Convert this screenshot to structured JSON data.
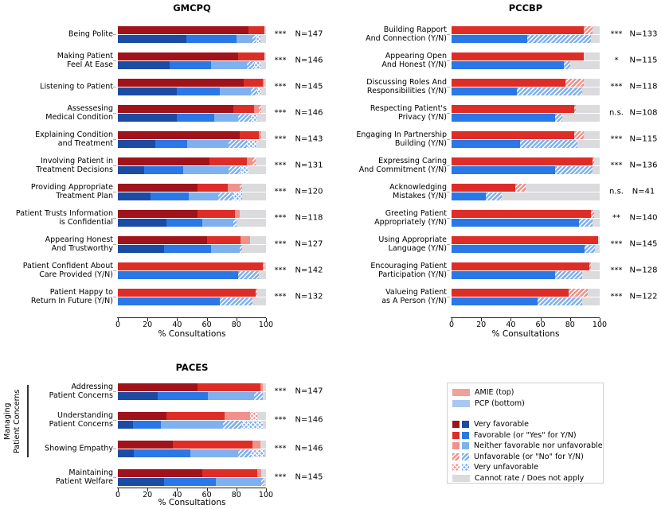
{
  "colors": {
    "amie_very_favorable": "#A0131A",
    "amie_favorable": "#DE2D26",
    "amie_neutral": "#F0918B",
    "pcp_very_favorable": "#1C4BA4",
    "pcp_favorable": "#2A77E8",
    "pcp_neutral": "#7FB1F0",
    "cannot_rate": "#DBDBDE",
    "legend_amie_swatch": "#F2A09A",
    "legend_pcp_swatch": "#A9C7F1",
    "axis": "#222222"
  },
  "legend": {
    "series": [
      {
        "label": "AMIE (top)",
        "swatch": "amie"
      },
      {
        "label": "PCP (bottom)",
        "swatch": "pcp"
      }
    ],
    "items": [
      {
        "label": "Very favorable",
        "key": "very_favorable",
        "hatch": "none"
      },
      {
        "label": "Favorable (or \"Yes\" for Y/N)",
        "key": "favorable",
        "hatch": "none"
      },
      {
        "label": "Neither favorable nor unfavorable",
        "key": "neutral",
        "hatch": "none"
      },
      {
        "label": "Unfavorable (or \"No\" for Y/N)",
        "key": "neutral",
        "hatch": "slash"
      },
      {
        "label": "Very unfavorable",
        "key": "neutral",
        "hatch": "cross"
      },
      {
        "label": "Cannot rate / Does not apply",
        "key": "cannot",
        "hatch": "none"
      }
    ]
  },
  "chart_data": [
    {
      "type": "bar",
      "title": "GMCPQ",
      "xlabel": "% Consultations",
      "orientation": "horizontal",
      "stacked": true,
      "xlim": [
        0,
        100
      ],
      "xticks": [
        0,
        20,
        40,
        60,
        80,
        100
      ],
      "series_order": [
        "AMIE (top)",
        "PCP (bottom)"
      ],
      "segment_order": [
        "very_favorable",
        "favorable",
        "neither_favorable_nor_unfavorable",
        "unfavorable",
        "very_unfavorable",
        "cannot_rate"
      ],
      "rows": [
        {
          "label": "Being Polite",
          "sig": "***",
          "n": "N=147",
          "amie": [
            88,
            11,
            0,
            0,
            0,
            1
          ],
          "pcp": [
            46,
            34,
            11,
            2,
            3,
            4
          ]
        },
        {
          "label": "Making Patient\nFeel At Ease",
          "sig": "***",
          "n": "N=146",
          "amie": [
            81,
            18,
            0,
            0,
            0,
            1
          ],
          "pcp": [
            35,
            28,
            24,
            5,
            4,
            4
          ]
        },
        {
          "label": "Listening to Patient",
          "sig": "***",
          "n": "N=145",
          "amie": [
            85,
            13,
            1,
            0,
            0,
            1
          ],
          "pcp": [
            40,
            29,
            21,
            4,
            3,
            3
          ]
        },
        {
          "label": "Assessesing\nMedical Condition",
          "sig": "***",
          "n": "N=146",
          "amie": [
            78,
            14,
            3,
            2,
            0,
            3
          ],
          "pcp": [
            40,
            25,
            16,
            9,
            4,
            6
          ]
        },
        {
          "label": "Explaining Condition\nand Treatment",
          "sig": "***",
          "n": "N=143",
          "amie": [
            82,
            13,
            1,
            1,
            0,
            3
          ],
          "pcp": [
            25,
            22,
            28,
            12,
            7,
            6
          ]
        },
        {
          "label": "Involving Patient in\nTreatment Decisions",
          "sig": "***",
          "n": "N=131",
          "amie": [
            62,
            25,
            4,
            2,
            0,
            7
          ],
          "pcp": [
            18,
            26,
            31,
            8,
            5,
            12
          ]
        },
        {
          "label": "Providing Appropriate\nTreatment Plan",
          "sig": "***",
          "n": "N=120",
          "amie": [
            54,
            20,
            8,
            2,
            0,
            16
          ],
          "pcp": [
            22,
            26,
            20,
            10,
            6,
            16
          ]
        },
        {
          "label": "Patient Trusts Information\nis Confidential",
          "sig": "***",
          "n": "N=118",
          "amie": [
            54,
            25,
            3,
            0,
            0,
            18
          ],
          "pcp": [
            33,
            24,
            21,
            2,
            0,
            20
          ]
        },
        {
          "label": "Appearing Honest\nAnd Trustworthy",
          "sig": "***",
          "n": "N=127",
          "amie": [
            60,
            23,
            6,
            0,
            0,
            11
          ],
          "pcp": [
            31,
            32,
            19,
            2,
            0,
            16
          ]
        },
        {
          "label": "Patient Confident About\nCare Provided (Y/N)",
          "sig": "***",
          "n": "N=142",
          "amie": [
            0,
            98,
            0,
            1,
            0,
            1
          ],
          "pcp": [
            0,
            81,
            0,
            14,
            0,
            5
          ]
        },
        {
          "label": "Patient Happy to\nReturn In Future (Y/N)",
          "sig": "***",
          "n": "N=132",
          "amie": [
            0,
            93,
            0,
            1,
            0,
            6
          ],
          "pcp": [
            0,
            69,
            0,
            22,
            0,
            9
          ]
        }
      ]
    },
    {
      "type": "bar",
      "title": "PCCBP",
      "xlabel": "% Consultations",
      "orientation": "horizontal",
      "stacked": true,
      "xlim": [
        0,
        100
      ],
      "xticks": [
        0,
        20,
        40,
        60,
        80,
        100
      ],
      "series_order": [
        "AMIE (top)",
        "PCP (bottom)"
      ],
      "segment_order": [
        "very_favorable",
        "favorable",
        "neither_favorable_nor_unfavorable",
        "unfavorable",
        "very_unfavorable",
        "cannot_rate"
      ],
      "rows": [
        {
          "label": "Building Rapport\nAnd Connection (Y/N)",
          "sig": "***",
          "n": "N=133",
          "amie": [
            0,
            89,
            0,
            6,
            0,
            5
          ],
          "pcp": [
            0,
            51,
            0,
            43,
            0,
            6
          ]
        },
        {
          "label": "Appearing Open\nAnd Honest (Y/N)",
          "sig": "*",
          "n": "N=115",
          "amie": [
            0,
            89,
            0,
            0,
            0,
            11
          ],
          "pcp": [
            0,
            76,
            0,
            4,
            0,
            20
          ]
        },
        {
          "label": "Discussing Roles And\nResponsibilities (Y/N)",
          "sig": "***",
          "n": "N=118",
          "amie": [
            0,
            77,
            0,
            12,
            0,
            11
          ],
          "pcp": [
            0,
            44,
            0,
            44,
            0,
            12
          ]
        },
        {
          "label": "Respecting Patient's\nPrivacy (Y/N)",
          "sig": "n.s.",
          "n": "N=108",
          "amie": [
            0,
            83,
            0,
            1,
            0,
            16
          ],
          "pcp": [
            0,
            70,
            0,
            5,
            0,
            25
          ]
        },
        {
          "label": "Engaging In Partnership\nBuilding (Y/N)",
          "sig": "***",
          "n": "N=115",
          "amie": [
            0,
            83,
            0,
            6,
            0,
            11
          ],
          "pcp": [
            0,
            46,
            0,
            39,
            0,
            15
          ]
        },
        {
          "label": "Expressing Caring\nAnd Commitment (Y/N)",
          "sig": "***",
          "n": "N=136",
          "amie": [
            0,
            95,
            0,
            1,
            0,
            4
          ],
          "pcp": [
            0,
            70,
            0,
            25,
            0,
            5
          ]
        },
        {
          "label": "Acknowledging\nMistakes (Y/N)",
          "sig": "n.s.",
          "n": "N=41",
          "amie": [
            0,
            43,
            0,
            7,
            0,
            50
          ],
          "pcp": [
            0,
            23,
            0,
            11,
            0,
            66
          ]
        },
        {
          "label": "Greeting Patient\nAppropriately (Y/N)",
          "sig": "**",
          "n": "N=140",
          "amie": [
            0,
            94,
            0,
            2,
            0,
            4
          ],
          "pcp": [
            0,
            86,
            0,
            9,
            0,
            5
          ]
        },
        {
          "label": "Using Appropriate\nLanguage (Y/N)",
          "sig": "***",
          "n": "N=145",
          "amie": [
            0,
            99,
            0,
            0,
            0,
            1
          ],
          "pcp": [
            0,
            90,
            0,
            7,
            0,
            3
          ]
        },
        {
          "label": "Encouraging Patient\nParticipation (Y/N)",
          "sig": "***",
          "n": "N=128",
          "amie": [
            0,
            93,
            0,
            1,
            0,
            6
          ],
          "pcp": [
            0,
            70,
            0,
            18,
            0,
            12
          ]
        },
        {
          "label": "Valueing Patient\nas A Person (Y/N)",
          "sig": "***",
          "n": "N=122",
          "amie": [
            0,
            79,
            0,
            13,
            0,
            8
          ],
          "pcp": [
            0,
            58,
            0,
            30,
            0,
            12
          ]
        }
      ]
    },
    {
      "type": "bar",
      "title": "PACES",
      "xlabel": "% Consultations",
      "orientation": "horizontal",
      "stacked": true,
      "xlim": [
        0,
        100
      ],
      "xticks": [
        0,
        20,
        40,
        60,
        80,
        100
      ],
      "series_order": [
        "AMIE (top)",
        "PCP (bottom)"
      ],
      "segment_order": [
        "very_favorable",
        "favorable",
        "neither_favorable_nor_unfavorable",
        "unfavorable",
        "very_unfavorable",
        "cannot_rate"
      ],
      "group_label": "Managing\nPatient Concerns",
      "group_rows": [
        0,
        1,
        2
      ],
      "rows": [
        {
          "label": "Addressing\nPatient Concerns",
          "sig": "***",
          "n": "N=147",
          "amie": [
            54,
            42,
            2,
            0,
            0,
            2
          ],
          "pcp": [
            27,
            34,
            31,
            6,
            0,
            2
          ]
        },
        {
          "label": "Understanding\nPatient Concerns",
          "sig": "***",
          "n": "N=146",
          "amie": [
            33,
            39,
            17,
            0,
            5,
            6
          ],
          "pcp": [
            10,
            19,
            42,
            13,
            14,
            2
          ]
        },
        {
          "label": "Showing Empathy",
          "sig": "***",
          "n": "N=146",
          "amie": [
            37,
            54,
            5,
            0,
            0,
            4
          ],
          "pcp": [
            11,
            38,
            32,
            9,
            9,
            1
          ]
        },
        {
          "label": "Maintaining\nPatient Welfare",
          "sig": "***",
          "n": "N=145",
          "amie": [
            57,
            37,
            3,
            0,
            0,
            3
          ],
          "pcp": [
            31,
            35,
            31,
            2,
            0,
            1
          ]
        }
      ]
    }
  ]
}
